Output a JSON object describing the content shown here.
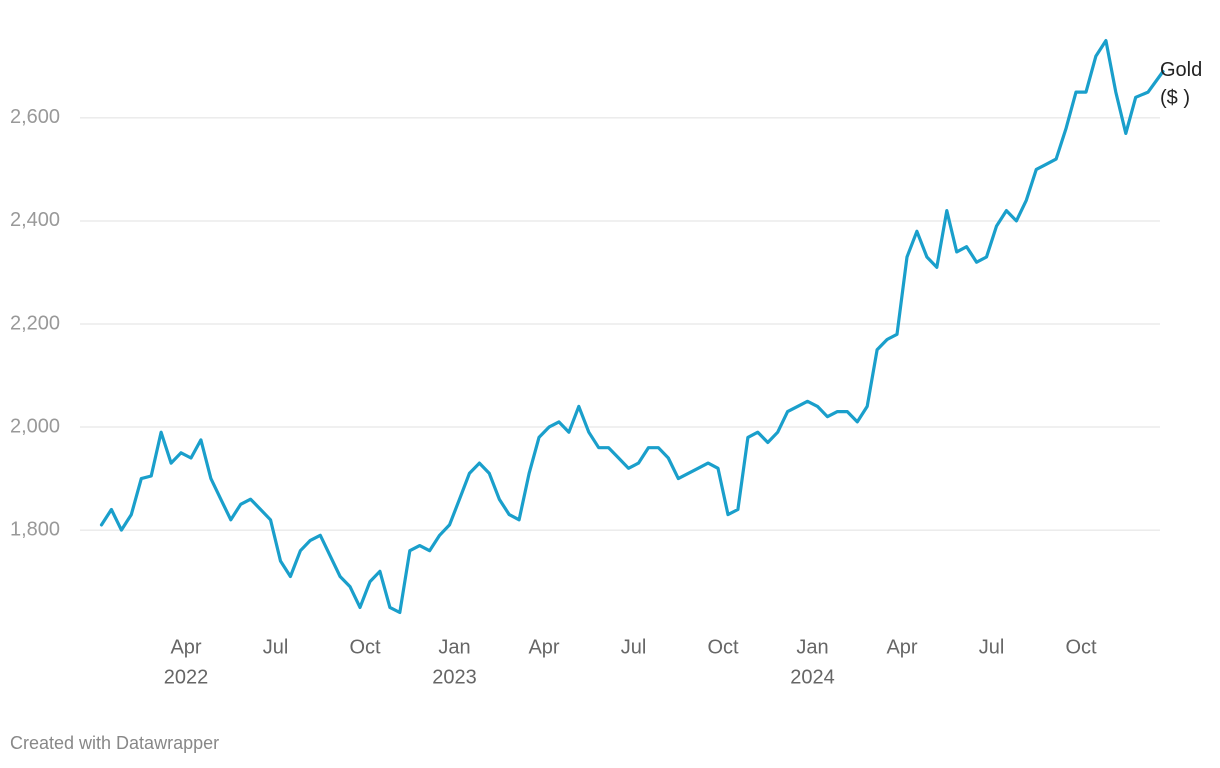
{
  "chart_data": {
    "type": "line",
    "footer": "Created with Datawrapper",
    "x": [
      "2022-01",
      "2022-01",
      "2022-01",
      "2022-02",
      "2022-02",
      "2022-02",
      "2022-03",
      "2022-03",
      "2022-03",
      "2022-04",
      "2022-04",
      "2022-04",
      "2022-05",
      "2022-05",
      "2022-05",
      "2022-06",
      "2022-06",
      "2022-06",
      "2022-07",
      "2022-07",
      "2022-07",
      "2022-08",
      "2022-08",
      "2022-08",
      "2022-09",
      "2022-09",
      "2022-09",
      "2022-10",
      "2022-10",
      "2022-10",
      "2022-11",
      "2022-11",
      "2022-11",
      "2022-12",
      "2022-12",
      "2022-12",
      "2023-01",
      "2023-01",
      "2023-01",
      "2023-02",
      "2023-02",
      "2023-02",
      "2023-03",
      "2023-03",
      "2023-03",
      "2023-04",
      "2023-04",
      "2023-04",
      "2023-05",
      "2023-05",
      "2023-05",
      "2023-06",
      "2023-06",
      "2023-06",
      "2023-07",
      "2023-07",
      "2023-07",
      "2023-08",
      "2023-08",
      "2023-08",
      "2023-09",
      "2023-09",
      "2023-09",
      "2023-10",
      "2023-10",
      "2023-10",
      "2023-11",
      "2023-11",
      "2023-11",
      "2023-12",
      "2023-12",
      "2023-12",
      "2024-01",
      "2024-01",
      "2024-01",
      "2024-02",
      "2024-02",
      "2024-02",
      "2024-03",
      "2024-03",
      "2024-03",
      "2024-04",
      "2024-04",
      "2024-04",
      "2024-05",
      "2024-05",
      "2024-05",
      "2024-06",
      "2024-06",
      "2024-06",
      "2024-07",
      "2024-07",
      "2024-07",
      "2024-08",
      "2024-08",
      "2024-08",
      "2024-09",
      "2024-09",
      "2024-09",
      "2024-10",
      "2024-10",
      "2024-10",
      "2024-11",
      "2024-11",
      "2024-11",
      "2024-12",
      "2024-12"
    ],
    "series": [
      {
        "name": "Gold ($ )",
        "color": "#1a9fcb",
        "values": [
          1810,
          1840,
          1800,
          1830,
          1900,
          1905,
          1990,
          1930,
          1950,
          1940,
          1975,
          1900,
          1860,
          1820,
          1850,
          1860,
          1840,
          1820,
          1740,
          1710,
          1760,
          1780,
          1790,
          1750,
          1710,
          1690,
          1650,
          1700,
          1720,
          1650,
          1640,
          1760,
          1770,
          1760,
          1790,
          1810,
          1860,
          1910,
          1930,
          1910,
          1860,
          1830,
          1820,
          1910,
          1980,
          2000,
          2010,
          1990,
          2040,
          1990,
          1960,
          1960,
          1940,
          1920,
          1930,
          1960,
          1960,
          1940,
          1900,
          1910,
          1920,
          1930,
          1920,
          1830,
          1840,
          1980,
          1990,
          1970,
          1990,
          2030,
          2040,
          2050,
          2040,
          2020,
          2030,
          2030,
          2010,
          2040,
          2150,
          2170,
          2180,
          2330,
          2380,
          2330,
          2310,
          2420,
          2340,
          2350,
          2320,
          2330,
          2390,
          2420,
          2400,
          2440,
          2500,
          2510,
          2520,
          2580,
          2650,
          2650,
          2720,
          2750,
          2650,
          2570,
          2640,
          2650,
          2690
        ]
      }
    ],
    "xlim": [
      "2022-01",
      "2024-12"
    ],
    "xticks": [
      {
        "value": "2022-04",
        "label": "Apr"
      },
      {
        "value": "2022-07",
        "label": "Jul"
      },
      {
        "value": "2022-10",
        "label": "Oct"
      },
      {
        "value": "2023-01",
        "label": "Jan"
      },
      {
        "value": "2023-04",
        "label": "Apr"
      },
      {
        "value": "2023-07",
        "label": "Jul"
      },
      {
        "value": "2023-10",
        "label": "Oct"
      },
      {
        "value": "2024-01",
        "label": "Jan"
      },
      {
        "value": "2024-04",
        "label": "Apr"
      },
      {
        "value": "2024-07",
        "label": "Jul"
      },
      {
        "value": "2024-10",
        "label": "Oct"
      }
    ],
    "x_year_labels": [
      {
        "value": "2022-04",
        "label": "2022"
      },
      {
        "value": "2023-01",
        "label": "2023"
      },
      {
        "value": "2024-01",
        "label": "2024"
      }
    ],
    "ylim": [
      1610,
      2790
    ],
    "yticks": [
      {
        "value": 1800,
        "label": "1,800"
      },
      {
        "value": 2000,
        "label": "2,000"
      },
      {
        "value": 2200,
        "label": "2,200"
      },
      {
        "value": 2400,
        "label": "2,400"
      },
      {
        "value": 2600,
        "label": "2,600"
      }
    ],
    "grid": true
  }
}
